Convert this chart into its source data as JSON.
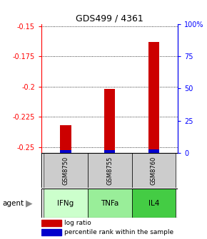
{
  "title": "GDS499 / 4361",
  "samples": [
    "GSM8750",
    "GSM8755",
    "GSM8760"
  ],
  "agents": [
    "IFNg",
    "TNFa",
    "IL4"
  ],
  "log_ratios": [
    -0.232,
    -0.202,
    -0.163
  ],
  "percentile_ranks": [
    2.0,
    2.5,
    3.0
  ],
  "ylim_left": [
    -0.255,
    -0.148
  ],
  "ylim_right": [
    0,
    100
  ],
  "yticks_left": [
    -0.25,
    -0.225,
    -0.2,
    -0.175,
    -0.15
  ],
  "yticks_right": [
    0,
    25,
    50,
    75,
    100
  ],
  "ytick_labels_left": [
    "-0.25",
    "-0.225",
    "-0.2",
    "-0.175",
    "-0.15"
  ],
  "ytick_labels_right": [
    "0",
    "25",
    "50",
    "75",
    "100%"
  ],
  "bar_bottom": -0.255,
  "bar_width": 0.25,
  "red_color": "#cc0000",
  "blue_color": "#0000cc",
  "agent_colors": [
    "#ccffcc",
    "#99ee99",
    "#44cc44"
  ],
  "sample_bg": "#cccccc",
  "title_fontsize": 9
}
